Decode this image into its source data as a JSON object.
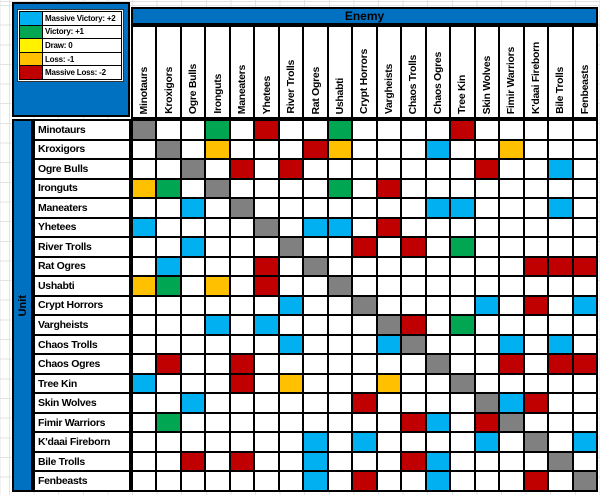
{
  "axes": {
    "col_header": "Enemy",
    "row_header": "Unit"
  },
  "legend": {
    "items": [
      {
        "code": "B",
        "label": "Massive Victory: +2",
        "color": "#00B0F0"
      },
      {
        "code": "G",
        "label": "Victory: +1",
        "color": "#00A651"
      },
      {
        "code": "Y",
        "label": "Draw: 0",
        "color": "#FFF200"
      },
      {
        "code": "O",
        "label": "Loss: -1",
        "color": "#FFC000"
      },
      {
        "code": "R",
        "label": "Massive Loss: -2",
        "color": "#C00000"
      }
    ]
  },
  "colors": {
    "B": "#00B0F0",
    "G": "#00A651",
    "Y": "#FFF200",
    "O": "#FFC000",
    "R": "#C00000",
    "X": "#808080",
    "banner": "#0070C0",
    "grid_line": "#000000"
  },
  "chart_data": {
    "type": "heatmap",
    "xlabel": "Enemy",
    "ylabel": "Unit",
    "legend_position": "top-left",
    "score_map": {
      "B": 2,
      "G": 1,
      "Y": 0,
      "O": -1,
      "R": -2
    },
    "code_meaning": {
      "B": "Massive Victory: +2",
      "G": "Victory: +1",
      "Y": "Draw: 0",
      "O": "Loss: -1",
      "R": "Massive Loss: -2",
      "X": "Mirror match (grey)",
      "": "blank"
    },
    "categories": [
      "Minotaurs",
      "Kroxigors",
      "Ogre Bulls",
      "Ironguts",
      "Maneaters",
      "Yhetees",
      "River Trolls",
      "Rat Ogres",
      "Ushabti",
      "Crypt Horrors",
      "Vargheists",
      "Chaos Trolls",
      "Chaos Ogres",
      "Tree Kin",
      "Skin Wolves",
      "Fimir Warriors",
      "K'daai Fireborn",
      "Bile Trolls",
      "Fenbeasts"
    ],
    "rows": [
      "Minotaurs",
      "Kroxigors",
      "Ogre Bulls",
      "Ironguts",
      "Maneaters",
      "Yhetees",
      "River Trolls",
      "Rat Ogres",
      "Ushabti",
      "Crypt Horrors",
      "Vargheists",
      "Chaos Trolls",
      "Chaos Ogres",
      "Tree Kin",
      "Skin Wolves",
      "Fimir Warriors",
      "K'daai Fireborn",
      "Bile Trolls",
      "Fenbeasts"
    ],
    "matrix": [
      [
        "X",
        "",
        "",
        "G",
        "",
        "R",
        "",
        "",
        "G",
        "",
        "",
        "",
        "",
        "R",
        "",
        "",
        "",
        "",
        ""
      ],
      [
        "",
        "X",
        "",
        "O",
        "",
        "",
        "",
        "R",
        "O",
        "",
        "",
        "",
        "B",
        "",
        "",
        "O",
        "",
        "",
        ""
      ],
      [
        "",
        "",
        "X",
        "",
        "R",
        "",
        "R",
        "",
        "",
        "",
        "",
        "",
        "",
        "",
        "R",
        "",
        "",
        "B",
        ""
      ],
      [
        "O",
        "G",
        "",
        "X",
        "",
        "",
        "",
        "",
        "G",
        "",
        "R",
        "",
        "",
        "",
        "",
        "",
        "",
        "",
        ""
      ],
      [
        "",
        "",
        "B",
        "",
        "X",
        "",
        "",
        "",
        "",
        "",
        "",
        "",
        "B",
        "B",
        "",
        "",
        "",
        "B",
        ""
      ],
      [
        "B",
        "",
        "",
        "",
        "",
        "X",
        "",
        "B",
        "B",
        "",
        "R",
        "",
        "",
        "",
        "",
        "",
        "",
        "",
        ""
      ],
      [
        "",
        "",
        "B",
        "",
        "",
        "",
        "X",
        "",
        "",
        "R",
        "",
        "R",
        "",
        "G",
        "",
        "",
        "",
        "",
        ""
      ],
      [
        "",
        "B",
        "",
        "",
        "",
        "R",
        "",
        "X",
        "",
        "",
        "",
        "",
        "",
        "",
        "",
        "",
        "R",
        "R",
        "R"
      ],
      [
        "O",
        "G",
        "",
        "O",
        "",
        "R",
        "",
        "",
        "X",
        "",
        "",
        "",
        "",
        "",
        "",
        "",
        "",
        "",
        ""
      ],
      [
        "",
        "",
        "",
        "",
        "",
        "",
        "B",
        "",
        "",
        "X",
        "",
        "",
        "",
        "",
        "B",
        "",
        "R",
        "",
        "B"
      ],
      [
        "",
        "",
        "",
        "B",
        "",
        "B",
        "",
        "",
        "",
        "",
        "X",
        "R",
        "",
        "G",
        "",
        "",
        "",
        "",
        ""
      ],
      [
        "",
        "",
        "",
        "",
        "",
        "",
        "B",
        "",
        "",
        "",
        "B",
        "X",
        "",
        "",
        "",
        "B",
        "",
        "B",
        ""
      ],
      [
        "",
        "R",
        "",
        "",
        "R",
        "",
        "",
        "",
        "",
        "",
        "",
        "",
        "X",
        "",
        "",
        "R",
        "",
        "R",
        "R"
      ],
      [
        "B",
        "",
        "",
        "",
        "R",
        "",
        "O",
        "",
        "",
        "",
        "O",
        "",
        "",
        "X",
        "",
        "",
        "",
        "",
        ""
      ],
      [
        "",
        "",
        "B",
        "",
        "",
        "",
        "",
        "",
        "",
        "R",
        "",
        "",
        "",
        "",
        "X",
        "B",
        "R",
        "",
        ""
      ],
      [
        "",
        "G",
        "",
        "",
        "",
        "",
        "",
        "",
        "",
        "",
        "",
        "R",
        "B",
        "",
        "R",
        "X",
        "",
        "",
        ""
      ],
      [
        "",
        "",
        "",
        "",
        "",
        "",
        "",
        "B",
        "",
        "B",
        "",
        "",
        "",
        "",
        "B",
        "",
        "X",
        "",
        "B"
      ],
      [
        "",
        "",
        "R",
        "",
        "R",
        "",
        "",
        "B",
        "",
        "",
        "",
        "R",
        "B",
        "",
        "",
        "",
        "",
        "X",
        ""
      ],
      [
        "",
        "",
        "",
        "",
        "",
        "",
        "",
        "B",
        "",
        "R",
        "",
        "",
        "B",
        "",
        "",
        "",
        "R",
        "",
        "X"
      ]
    ]
  }
}
